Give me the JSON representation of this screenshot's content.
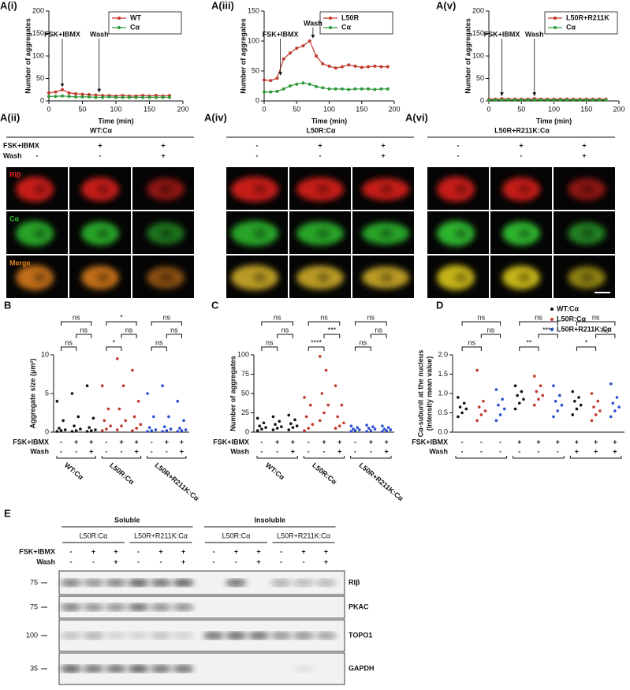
{
  "chart_data": [
    {
      "type": "line",
      "label": "A(i)",
      "xlabel": "Time (min)",
      "ylabel": "Number of aggregates",
      "x": [
        0,
        10,
        20,
        30,
        40,
        50,
        60,
        70,
        80,
        90,
        100,
        110,
        120,
        130,
        140,
        150,
        160,
        170,
        180
      ],
      "xlim": [
        0,
        200
      ],
      "xticks": [
        0,
        50,
        100,
        150,
        200
      ],
      "ylim": [
        0,
        200
      ],
      "yticks": [
        0,
        50,
        100,
        150,
        200
      ],
      "legend": "upper right",
      "series": [
        {
          "name": "WT",
          "color": "#c0392b",
          "values": [
            18,
            20,
            25,
            18,
            16,
            15,
            14,
            13,
            12,
            12,
            11,
            12,
            11,
            11,
            12,
            11,
            12,
            11,
            12
          ]
        },
        {
          "name": "Cα",
          "color": "#2e9a3a",
          "values": [
            10,
            10,
            11,
            10,
            9,
            9,
            9,
            8,
            8,
            9,
            8,
            8,
            8,
            8,
            8,
            8,
            8,
            8,
            8
          ]
        }
      ],
      "annotations": [
        {
          "text": "FSK+IBMX",
          "x": 20
        },
        {
          "text": "Wash",
          "x": 75
        }
      ]
    },
    {
      "type": "line",
      "label": "A(iii)",
      "xlabel": "Time (min)",
      "ylabel": "Number of aggregates",
      "x": [
        0,
        10,
        20,
        30,
        40,
        50,
        60,
        70,
        80,
        90,
        100,
        110,
        120,
        130,
        140,
        150,
        160,
        170,
        180,
        190
      ],
      "xlim": [
        0,
        200
      ],
      "xticks": [
        0,
        50,
        100,
        150,
        200
      ],
      "ylim": [
        0,
        150
      ],
      "yticks": [
        0,
        50,
        100,
        150
      ],
      "legend": "upper right",
      "series": [
        {
          "name": "L50R",
          "color": "#c0392b",
          "values": [
            35,
            34,
            38,
            70,
            80,
            88,
            92,
            100,
            75,
            62,
            58,
            55,
            57,
            60,
            58,
            56,
            57,
            58,
            57,
            57
          ]
        },
        {
          "name": "Cα",
          "color": "#2e9a3a",
          "values": [
            15,
            15,
            16,
            20,
            25,
            28,
            30,
            28,
            24,
            22,
            20,
            20,
            20,
            19,
            20,
            20,
            20,
            19,
            20,
            20
          ]
        }
      ],
      "annotations": [
        {
          "text": "FSK+IBMX",
          "x": 25
        },
        {
          "text": "Wash",
          "x": 75
        }
      ]
    },
    {
      "type": "line",
      "label": "A(v)",
      "xlabel": "Time (min)",
      "ylabel": "Number of aggregates",
      "x": [
        0,
        10,
        20,
        30,
        40,
        50,
        60,
        70,
        80,
        90,
        100,
        110,
        120,
        130,
        140,
        150,
        160,
        170,
        180
      ],
      "xlim": [
        0,
        200
      ],
      "xticks": [
        0,
        50,
        100,
        150,
        200
      ],
      "ylim": [
        0,
        200
      ],
      "yticks": [
        0,
        50,
        100,
        150,
        200
      ],
      "legend": "upper right",
      "series": [
        {
          "name": "L50R+R211K",
          "color": "#c0392b",
          "values": [
            4,
            4,
            5,
            4,
            4,
            4,
            4,
            5,
            4,
            4,
            4,
            4,
            4,
            4,
            4,
            4,
            4,
            4,
            4
          ]
        },
        {
          "name": "Cα",
          "color": "#2e9a3a",
          "values": [
            2,
            2,
            2,
            2,
            2,
            2,
            2,
            2,
            2,
            2,
            2,
            2,
            2,
            2,
            2,
            2,
            2,
            2,
            2
          ]
        }
      ],
      "annotations": [
        {
          "text": "FSK+IBMX",
          "x": 20
        },
        {
          "text": "Wash",
          "x": 70
        }
      ]
    },
    {
      "type": "strip",
      "label": "B",
      "ylabel": "Aggregate size (μm²)",
      "ylim": [
        0,
        10
      ],
      "yticks": [
        0,
        5,
        10
      ],
      "column_colors": [
        "#111111",
        "#111111",
        "#111111",
        "#c0392b",
        "#c0392b",
        "#c0392b",
        "#2a4fd0",
        "#2a4fd0",
        "#2a4fd0"
      ],
      "values": [
        [
          0.1,
          0.2,
          0.3,
          0.5,
          1.5,
          4
        ],
        [
          0.1,
          0.2,
          0.4,
          0.8,
          2,
          5
        ],
        [
          0.1,
          0.2,
          0.3,
          0.6,
          1.8,
          6
        ],
        [
          0.2,
          0.4,
          0.8,
          1.5,
          3,
          6
        ],
        [
          0.3,
          0.8,
          1.5,
          3,
          6,
          9.5
        ],
        [
          0.2,
          0.5,
          1,
          2,
          4,
          8
        ],
        [
          0.1,
          0.2,
          0.3,
          0.6,
          2,
          5
        ],
        [
          0.1,
          0.2,
          0.4,
          0.7,
          2,
          6
        ],
        [
          0.1,
          0.2,
          0.3,
          0.5,
          1.5,
          4
        ]
      ],
      "treatments": [
        {
          "name": "FSK+IBMX",
          "signs": [
            "-",
            "+",
            "+",
            "-",
            "+",
            "+",
            "-",
            "+",
            "+"
          ]
        },
        {
          "name": "Wash",
          "signs": [
            "-",
            "-",
            "+",
            "-",
            "-",
            "+",
            "-",
            "-",
            "+"
          ]
        }
      ],
      "group_labels": [
        "WT:Cα",
        "L50R:Cα",
        "L50R+R211K:Cα"
      ],
      "comparisons": [
        {
          "pair": [
            0,
            1
          ],
          "text": "ns"
        },
        {
          "pair": [
            1,
            2
          ],
          "text": "ns"
        },
        {
          "pair": [
            0,
            2
          ],
          "text": "ns"
        },
        {
          "pair": [
            3,
            4
          ],
          "text": "*"
        },
        {
          "pair": [
            4,
            5
          ],
          "text": "ns"
        },
        {
          "pair": [
            3,
            5
          ],
          "text": "*"
        },
        {
          "pair": [
            6,
            7
          ],
          "text": "ns"
        },
        {
          "pair": [
            7,
            8
          ],
          "text": "ns"
        },
        {
          "pair": [
            6,
            8
          ],
          "text": "ns"
        }
      ]
    },
    {
      "type": "strip",
      "label": "C",
      "ylabel": "Number of aggregates",
      "ylim": [
        0,
        100
      ],
      "yticks": [
        0,
        25,
        50,
        75,
        100
      ],
      "column_colors": [
        "#111111",
        "#111111",
        "#111111",
        "#c0392b",
        "#c0392b",
        "#c0392b",
        "#2a4fd0",
        "#2a4fd0",
        "#2a4fd0"
      ],
      "values": [
        [
          2,
          4,
          6,
          8,
          12,
          18
        ],
        [
          3,
          5,
          7,
          10,
          14,
          20
        ],
        [
          3,
          6,
          8,
          11,
          16,
          22
        ],
        [
          2,
          5,
          10,
          20,
          35,
          45
        ],
        [
          15,
          25,
          35,
          50,
          80,
          98
        ],
        [
          5,
          8,
          12,
          20,
          35,
          60
        ],
        [
          1,
          2,
          3,
          4,
          6,
          8
        ],
        [
          1,
          2,
          4,
          5,
          7,
          9
        ],
        [
          1,
          2,
          3,
          4,
          6,
          8
        ]
      ],
      "treatments": [
        {
          "name": "FSK+IBMX",
          "signs": [
            "-",
            "+",
            "+",
            "-",
            "+",
            "+",
            "-",
            "+",
            "+"
          ]
        },
        {
          "name": "Wash",
          "signs": [
            "-",
            "-",
            "+",
            "-",
            "-",
            "+",
            "-",
            "-",
            "+"
          ]
        }
      ],
      "group_labels": [
        "WT:Cα",
        "L50R:Cα",
        "L50R+R211K:Cα"
      ],
      "comparisons": [
        {
          "pair": [
            0,
            1
          ],
          "text": "ns"
        },
        {
          "pair": [
            1,
            2
          ],
          "text": "ns"
        },
        {
          "pair": [
            0,
            2
          ],
          "text": "ns"
        },
        {
          "pair": [
            3,
            4
          ],
          "text": "****"
        },
        {
          "pair": [
            4,
            5
          ],
          "text": "***"
        },
        {
          "pair": [
            3,
            5
          ],
          "text": "ns"
        },
        {
          "pair": [
            6,
            7
          ],
          "text": "ns"
        },
        {
          "pair": [
            7,
            8
          ],
          "text": "ns"
        },
        {
          "pair": [
            6,
            8
          ],
          "text": "ns"
        }
      ]
    },
    {
      "type": "strip",
      "label": "D",
      "ylabel": [
        "Cα-subunit at the nucleus",
        "(Intensity mean value)"
      ],
      "ylim": [
        0,
        2
      ],
      "yticks": [
        {
          "value": 0,
          "label": "0.0"
        },
        0.5,
        {
          "value": 1,
          "label": "1.0"
        },
        1.5,
        {
          "value": 2,
          "label": "2.0"
        }
      ],
      "column_colors": [
        "#111111",
        "#c0392b",
        "#2a4fd0",
        "#111111",
        "#c0392b",
        "#2a4fd0",
        "#111111",
        "#c0392b",
        "#2a4fd0"
      ],
      "values": [
        [
          0.4,
          0.5,
          0.6,
          0.65,
          0.75,
          0.9
        ],
        [
          0.3,
          0.45,
          0.55,
          0.65,
          0.8,
          1.6
        ],
        [
          0.3,
          0.45,
          0.6,
          0.7,
          0.85,
          1.1
        ],
        [
          0.6,
          0.75,
          0.85,
          0.95,
          1.05,
          1.2
        ],
        [
          0.7,
          0.85,
          0.95,
          1.05,
          1.2,
          1.45
        ],
        [
          0.4,
          0.55,
          0.7,
          0.8,
          0.95,
          1.2
        ],
        [
          0.45,
          0.6,
          0.7,
          0.8,
          0.9,
          1.05
        ],
        [
          0.3,
          0.45,
          0.55,
          0.65,
          0.8,
          1.0
        ],
        [
          0.4,
          0.55,
          0.65,
          0.75,
          0.9,
          1.25
        ]
      ],
      "treatments": [
        {
          "name": "FSK+IBMX",
          "signs": [
            "-",
            "-",
            "-",
            "+",
            "+",
            "+",
            "+",
            "+",
            "+"
          ]
        },
        {
          "name": "Wash",
          "signs": [
            "-",
            "-",
            "-",
            "-",
            "-",
            "-",
            "+",
            "+",
            "+"
          ]
        }
      ],
      "legend": "upper right",
      "series": [
        {
          "name": "WT:Cα",
          "color": "#111111"
        },
        {
          "name": "L50R:Cα",
          "color": "#c0392b"
        },
        {
          "name": "L50R+R211K:Cα",
          "color": "#2a4fd0"
        }
      ],
      "comparisons": [
        {
          "pair": [
            0,
            1
          ],
          "text": "ns"
        },
        {
          "pair": [
            1,
            2
          ],
          "text": "ns"
        },
        {
          "pair": [
            0,
            2
          ],
          "text": "ns"
        },
        {
          "pair": [
            3,
            4
          ],
          "text": "**"
        },
        {
          "pair": [
            4,
            5
          ],
          "text": "****"
        },
        {
          "pair": [
            3,
            5
          ],
          "text": "ns"
        },
        {
          "pair": [
            6,
            7
          ],
          "text": "*"
        },
        {
          "pair": [
            7,
            8
          ],
          "text": "ns"
        },
        {
          "pair": [
            6,
            8
          ],
          "text": "ns"
        }
      ]
    }
  ],
  "micrographs": [
    {
      "label": "A(ii)",
      "title": "WT:Cα",
      "treatments": [
        {
          "name": "FSK+IBMX",
          "signs": [
            "-",
            "+",
            "+"
          ]
        },
        {
          "name": "Wash",
          "signs": [
            "-",
            "-",
            "+"
          ]
        }
      ],
      "channels": [
        "RIβ",
        "Cα",
        "Merge"
      ]
    },
    {
      "label": "A(iv)",
      "title": "L50R:Cα",
      "treatments": [
        {
          "signs": [
            "-",
            "+",
            "+"
          ]
        },
        {
          "signs": [
            "-",
            "-",
            "+"
          ]
        }
      ]
    },
    {
      "label": "A(vi)",
      "title": "L50R+R211K:Cα",
      "treatments": [
        {
          "signs": [
            "-",
            "+",
            "+"
          ]
        },
        {
          "signs": [
            "-",
            "-",
            "+"
          ]
        }
      ]
    }
  ],
  "blot": {
    "label": "E",
    "fractions": [
      {
        "name": "Soluble",
        "groups": [
          "L50R:Cα",
          "L50R+R211K:Cα"
        ]
      },
      {
        "name": "Insoluble",
        "groups": [
          "L50R:Cα",
          "L50R+R211K:Cα"
        ]
      }
    ],
    "treatments": [
      {
        "name": "FSK+IBMX",
        "signs": [
          "-",
          "+",
          "+",
          "-",
          "+",
          "+",
          "-",
          "+",
          "+",
          "-",
          "+",
          "+"
        ]
      },
      {
        "name": "Wash",
        "signs": [
          "-",
          "-",
          "+",
          "-",
          "-",
          "+",
          "-",
          "-",
          "+",
          "-",
          "-",
          "+"
        ]
      }
    ],
    "rows": [
      {
        "marker": 75,
        "protein": "RIβ"
      },
      {
        "marker": 75,
        "protein": "PKAC"
      },
      {
        "marker": 100,
        "protein": "TOPO1"
      },
      {
        "marker": 35,
        "protein": "GAPDH"
      }
    ]
  }
}
